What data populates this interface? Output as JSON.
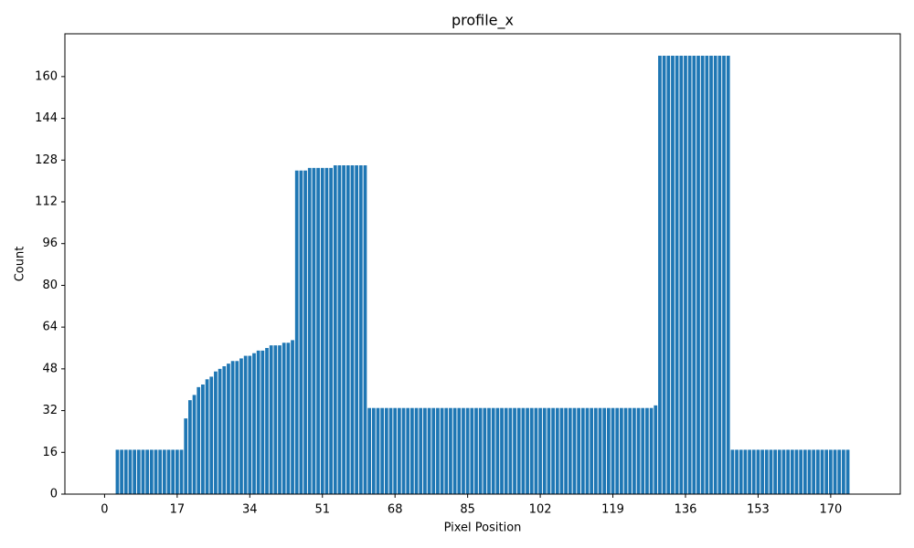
{
  "chart_data": {
    "type": "bar",
    "title": "profile_x",
    "x_label": "Pixel Position",
    "y_label": "Count",
    "color": "#1f77b4",
    "x": [
      0,
      1,
      2,
      3,
      4,
      5,
      6,
      7,
      8,
      9,
      10,
      11,
      12,
      13,
      14,
      15,
      16,
      17,
      18,
      19,
      20,
      21,
      22,
      23,
      24,
      25,
      26,
      27,
      28,
      29,
      30,
      31,
      32,
      33,
      34,
      35,
      36,
      37,
      38,
      39,
      40,
      41,
      42,
      43,
      44,
      45,
      46,
      47,
      48,
      49,
      50,
      51,
      52,
      53,
      54,
      55,
      56,
      57,
      58,
      59,
      60,
      61,
      62,
      63,
      64,
      65,
      66,
      67,
      68,
      69,
      70,
      71,
      72,
      73,
      74,
      75,
      76,
      77,
      78,
      79,
      80,
      81,
      82,
      83,
      84,
      85,
      86,
      87,
      88,
      89,
      90,
      91,
      92,
      93,
      94,
      95,
      96,
      97,
      98,
      99,
      100,
      101,
      102,
      103,
      104,
      105,
      106,
      107,
      108,
      109,
      110,
      111,
      112,
      113,
      114,
      115,
      116,
      117,
      118,
      119,
      120,
      121,
      122,
      123,
      124,
      125,
      126,
      127,
      128,
      129,
      130,
      131,
      132,
      133,
      134,
      135,
      136,
      137,
      138,
      139,
      140,
      141,
      142,
      143,
      144,
      145,
      146,
      147,
      148,
      149,
      150,
      151,
      152,
      153,
      154,
      155,
      156,
      157,
      158,
      159,
      160,
      161,
      162,
      163,
      164,
      165,
      166,
      167,
      168,
      169,
      170,
      171,
      172,
      173,
      174,
      175,
      176,
      177
    ],
    "values": [
      0,
      0,
      0,
      17,
      17,
      17,
      17,
      17,
      17,
      17,
      17,
      17,
      17,
      17,
      17,
      17,
      17,
      17,
      17,
      29,
      36,
      38,
      41,
      42,
      44,
      45,
      47,
      48,
      49,
      50,
      51,
      51,
      52,
      53,
      53,
      54,
      55,
      55,
      56,
      57,
      57,
      57,
      58,
      58,
      59,
      124,
      124,
      124,
      125,
      125,
      125,
      125,
      125,
      125,
      126,
      126,
      126,
      126,
      126,
      126,
      126,
      126,
      33,
      33,
      33,
      33,
      33,
      33,
      33,
      33,
      33,
      33,
      33,
      33,
      33,
      33,
      33,
      33,
      33,
      33,
      33,
      33,
      33,
      33,
      33,
      33,
      33,
      33,
      33,
      33,
      33,
      33,
      33,
      33,
      33,
      33,
      33,
      33,
      33,
      33,
      33,
      33,
      33,
      33,
      33,
      33,
      33,
      33,
      33,
      33,
      33,
      33,
      33,
      33,
      33,
      33,
      33,
      33,
      33,
      33,
      33,
      33,
      33,
      33,
      33,
      33,
      33,
      33,
      33,
      34,
      168,
      168,
      168,
      168,
      168,
      168,
      168,
      168,
      168,
      168,
      168,
      168,
      168,
      168,
      168,
      168,
      168,
      17,
      17,
      17,
      17,
      17,
      17,
      17,
      17,
      17,
      17,
      17,
      17,
      17,
      17,
      17,
      17,
      17,
      17,
      17,
      17,
      17,
      17,
      17,
      17,
      17,
      17,
      17,
      17,
      0,
      0,
      0
    ],
    "xlim": [
      -9.29,
      186.29
    ],
    "xticks": [
      0,
      17,
      34,
      51,
      68,
      85,
      102,
      119,
      136,
      153,
      170
    ],
    "ylim": [
      0,
      176.4
    ],
    "yticks": [
      0,
      16,
      32,
      48,
      64,
      80,
      96,
      112,
      128,
      144,
      160
    ]
  }
}
